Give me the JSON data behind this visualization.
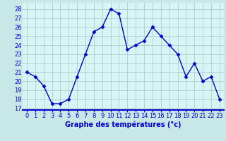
{
  "x": [
    0,
    1,
    2,
    3,
    4,
    5,
    6,
    7,
    8,
    9,
    10,
    11,
    12,
    13,
    14,
    15,
    16,
    17,
    18,
    19,
    20,
    21,
    22,
    23
  ],
  "y": [
    21.0,
    20.5,
    19.5,
    17.5,
    17.5,
    18.0,
    20.5,
    23.0,
    25.5,
    26.0,
    28.0,
    27.5,
    23.5,
    24.0,
    24.5,
    26.0,
    25.0,
    24.0,
    23.0,
    20.5,
    22.0,
    20.0,
    20.5,
    18.0
  ],
  "line_color": "#0000cc",
  "marker": "D",
  "marker_size": 2.5,
  "line_width": 1.0,
  "bg_color": "#c8e8e8",
  "plot_bg_color": "#d8f4f4",
  "grid_color": "#b0d4d4",
  "xlabel": "Graphe des températures (°c)",
  "xlabel_color": "#0000cc",
  "xlabel_fontsize": 7.0,
  "tick_color": "#0000cc",
  "tick_fontsize": 6.0,
  "yticks": [
    17,
    18,
    19,
    20,
    21,
    22,
    23,
    24,
    25,
    26,
    27,
    28
  ],
  "ylim": [
    16.8,
    28.7
  ],
  "xlim": [
    -0.5,
    23.5
  ],
  "border_color": "#0000cc",
  "border_linewidth": 1.5
}
